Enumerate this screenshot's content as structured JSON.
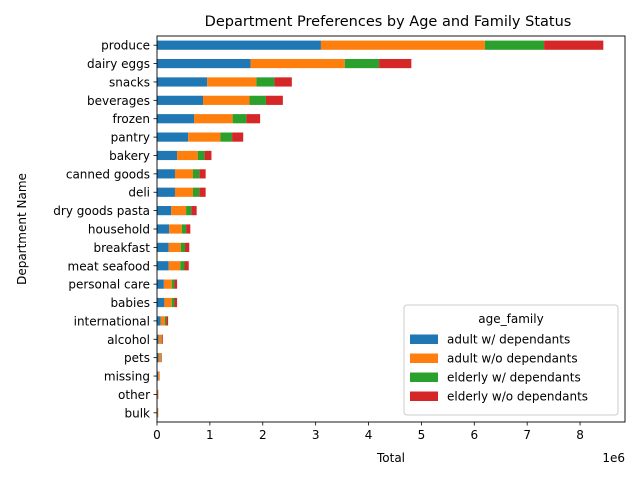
{
  "chart_data": {
    "type": "bar",
    "orientation": "horizontal",
    "stacked": true,
    "title": "Department Preferences by Age and Family Status",
    "xlabel": "Total",
    "ylabel": "Department Name",
    "x_offset_label": "1e6",
    "x_scale": 1000000,
    "xlim": [
      0,
      8.85
    ],
    "xticks": [
      0,
      1,
      2,
      3,
      4,
      5,
      6,
      7,
      8
    ],
    "grid": false,
    "legend_title": "age_family",
    "legend_position": "lower-right",
    "categories": [
      "produce",
      "dairy eggs",
      "snacks",
      "beverages",
      "frozen",
      "pantry",
      "bakery",
      "canned goods",
      "deli",
      "dry goods pasta",
      "household",
      "breakfast",
      "meat seafood",
      "personal care",
      "babies",
      "international",
      "alcohol",
      "pets",
      "missing",
      "other",
      "bulk"
    ],
    "series": [
      {
        "name": "adult w/ dependants",
        "color": "#1f77b4",
        "values": [
          3.1,
          1.77,
          0.95,
          0.87,
          0.7,
          0.59,
          0.38,
          0.34,
          0.34,
          0.27,
          0.23,
          0.22,
          0.22,
          0.13,
          0.14,
          0.07,
          0.03,
          0.03,
          0.02,
          0.01,
          0.01
        ]
      },
      {
        "name": "adult w/o dependants",
        "color": "#ff7f0e",
        "values": [
          3.1,
          1.78,
          0.93,
          0.88,
          0.73,
          0.61,
          0.39,
          0.34,
          0.34,
          0.28,
          0.24,
          0.23,
          0.22,
          0.15,
          0.14,
          0.08,
          0.05,
          0.04,
          0.02,
          0.01,
          0.01
        ]
      },
      {
        "name": "elderly w/ dependants",
        "color": "#2ca02c",
        "values": [
          1.12,
          0.65,
          0.34,
          0.31,
          0.26,
          0.22,
          0.13,
          0.12,
          0.12,
          0.1,
          0.08,
          0.08,
          0.08,
          0.05,
          0.05,
          0.03,
          0.01,
          0.01,
          0.005,
          0.003,
          0.002
        ]
      },
      {
        "name": "elderly w/o dependants",
        "color": "#d62728",
        "values": [
          1.12,
          0.61,
          0.33,
          0.32,
          0.26,
          0.21,
          0.13,
          0.12,
          0.12,
          0.1,
          0.08,
          0.08,
          0.08,
          0.05,
          0.05,
          0.03,
          0.02,
          0.01,
          0.005,
          0.003,
          0.002
        ]
      }
    ]
  }
}
